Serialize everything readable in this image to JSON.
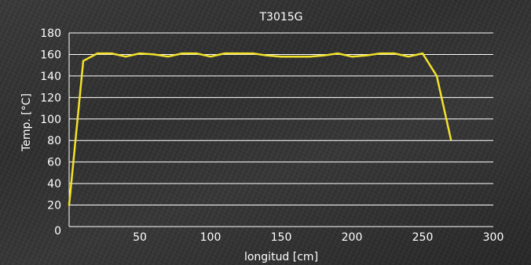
{
  "chart_data": {
    "type": "line",
    "title": "T3015G",
    "xlabel": "longitud [cm]",
    "ylabel": "Temp. [°C]",
    "xlim": [
      0,
      300
    ],
    "ylim": [
      0,
      180
    ],
    "x_ticks": [
      50,
      100,
      150,
      200,
      250,
      300
    ],
    "y_ticks": [
      0,
      20,
      40,
      60,
      80,
      100,
      120,
      140,
      160,
      180
    ],
    "grid": "horizontal",
    "line_color": "#f2e22a",
    "grid_color": "#ffffff",
    "series": [
      {
        "x": [
          0,
          10,
          20,
          30,
          40,
          50,
          60,
          70,
          80,
          90,
          100,
          110,
          120,
          130,
          140,
          150,
          160,
          170,
          180,
          190,
          200,
          210,
          220,
          230,
          240,
          250,
          260,
          270
        ],
        "values": [
          20,
          154,
          161,
          161,
          158,
          161,
          160,
          158,
          161,
          161,
          158,
          161,
          161,
          161,
          159,
          158,
          158,
          158,
          159,
          161,
          158,
          159,
          161,
          161,
          158,
          161,
          140,
          81
        ]
      }
    ]
  }
}
